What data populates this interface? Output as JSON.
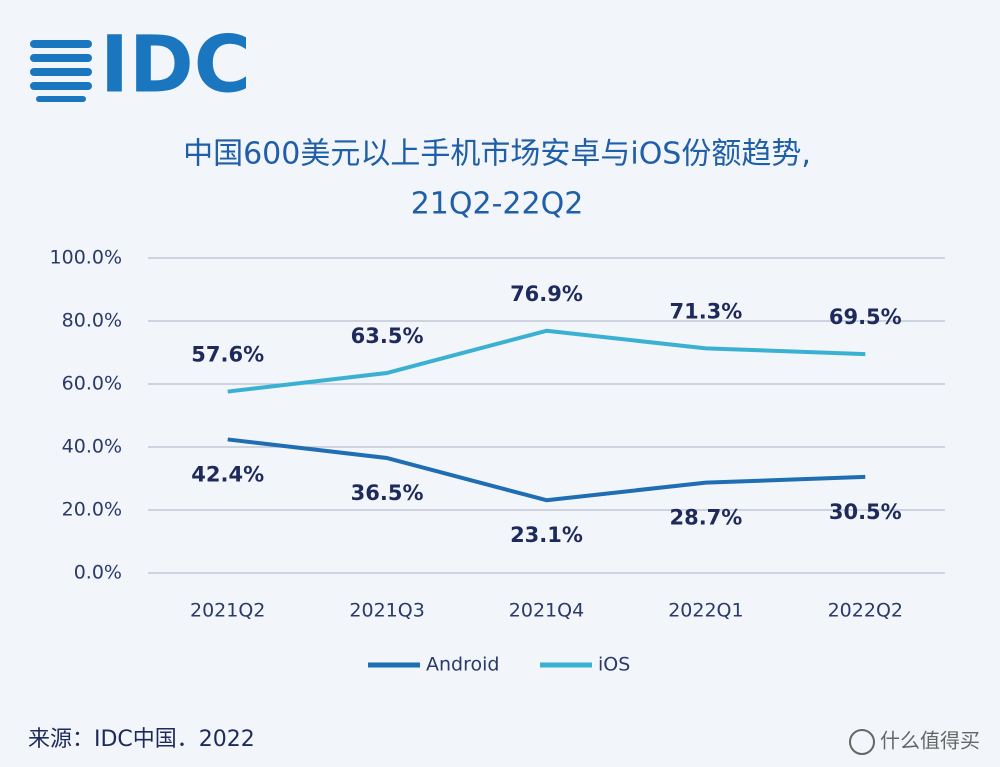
{
  "logo": "IDC",
  "source": "来源：IDC中国．2022",
  "watermark": "什么值得买",
  "chart_data": {
    "type": "line",
    "title": "中国600美元以上手机市场安卓与iOS份额趋势,",
    "subtitle": "21Q2-22Q2",
    "categories": [
      "2021Q2",
      "2021Q3",
      "2021Q4",
      "2022Q1",
      "2022Q2"
    ],
    "series": [
      {
        "name": "Android",
        "color": "#1f6db3",
        "values": [
          42.4,
          36.5,
          23.1,
          28.7,
          30.5
        ],
        "value_labels": [
          "42.4%",
          "36.5%",
          "23.1%",
          "28.7%",
          "30.5%"
        ]
      },
      {
        "name": "iOS",
        "color": "#3ab1d2",
        "values": [
          57.6,
          63.5,
          76.9,
          71.3,
          69.5
        ],
        "value_labels": [
          "57.6%",
          "63.5%",
          "76.9%",
          "71.3%",
          "69.5%"
        ]
      }
    ],
    "ylim": [
      0,
      100
    ],
    "yticks": [
      {
        "value": 0,
        "label": "0.0%"
      },
      {
        "value": 20,
        "label": "20.0%"
      },
      {
        "value": 40,
        "label": "40.0%"
      },
      {
        "value": 60,
        "label": "60.0%"
      },
      {
        "value": 80,
        "label": "80.0%"
      },
      {
        "value": 100,
        "label": "100.0%"
      }
    ],
    "grid": true,
    "legend": "bottom"
  }
}
